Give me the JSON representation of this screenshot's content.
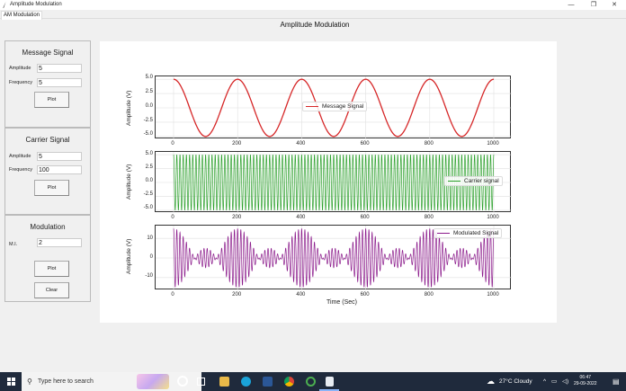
{
  "window": {
    "title": "Amplitude Modulation",
    "controls": {
      "minimize": "—",
      "maximize": "❐",
      "close": "✕"
    }
  },
  "tabs": [
    {
      "label": "AM Modulation",
      "active": true
    }
  ],
  "app_title": "Amplitude Modulation",
  "panels": {
    "message": {
      "heading": "Message Signal",
      "amplitude_label": "Amplitude",
      "amplitude_value": "5",
      "frequency_label": "Frequency",
      "frequency_value": "5",
      "plot_button": "Plot"
    },
    "carrier": {
      "heading": "Carrier Signal",
      "amplitude_label": "Amplitude",
      "amplitude_value": "5",
      "frequency_label": "Frequency",
      "frequency_value": "100",
      "plot_button": "Plot"
    },
    "modulation": {
      "heading": "Modulation",
      "mi_label": "M.I.",
      "mi_value": "2",
      "plot_button": "Plot",
      "clear_button": "Clear"
    }
  },
  "chart_data": [
    {
      "type": "line",
      "title": "",
      "xlabel": "",
      "ylabel": "Amplitude (V)",
      "xlim": [
        0,
        1000
      ],
      "ylim": [
        -5.5,
        5.5
      ],
      "xticks": [
        "0",
        "200",
        "400",
        "600",
        "800",
        "1000"
      ],
      "yticks": [
        "5.0",
        "2.5",
        "0.0",
        "-2.5",
        "-5.0"
      ],
      "grid": true,
      "legend": {
        "label": "Message Signal",
        "position": "center right"
      },
      "series": [
        {
          "name": "Message Signal",
          "color": "#d62728",
          "function": "5*cos(2*pi*5*t), t in [0,1], x = t*1000",
          "amplitude": 5,
          "frequency": 5
        }
      ]
    },
    {
      "type": "line",
      "xlabel": "",
      "ylabel": "Amplitude (V)",
      "xlim": [
        0,
        1000
      ],
      "ylim": [
        -5.5,
        5.5
      ],
      "xticks": [
        "0",
        "200",
        "400",
        "600",
        "800",
        "1000"
      ],
      "yticks": [
        "5.0",
        "2.5",
        "0.0",
        "-2.5",
        "-5.0"
      ],
      "grid": true,
      "legend": {
        "label": "Carrier signal",
        "position": "center right"
      },
      "series": [
        {
          "name": "Carrier signal",
          "color": "#2ca02c",
          "function": "5*cos(2*pi*100*t)",
          "amplitude": 5,
          "frequency": 100
        }
      ]
    },
    {
      "type": "line",
      "xlabel": "Time (Sec)",
      "ylabel": "Amplitude (V)",
      "xlim": [
        0,
        1000
      ],
      "ylim": [
        -16.5,
        16.5
      ],
      "xticks": [
        "0",
        "200",
        "400",
        "600",
        "800",
        "1000"
      ],
      "yticks": [
        "10",
        "0",
        "-10"
      ],
      "grid": true,
      "legend": {
        "label": "Modulated Signal",
        "position": "upper right"
      },
      "series": [
        {
          "name": "Modulated Signal",
          "color": "#8b1a8b",
          "function": "5*(1+2*cos(2*pi*5*t))*cos(2*pi*100*t)",
          "modulation_index": 2,
          "peak": 15
        }
      ]
    }
  ],
  "taskbar": {
    "search_placeholder": "Type here to search",
    "weather": "27°C  Cloudy",
    "time": "06:47",
    "date": "29-09-2022"
  }
}
